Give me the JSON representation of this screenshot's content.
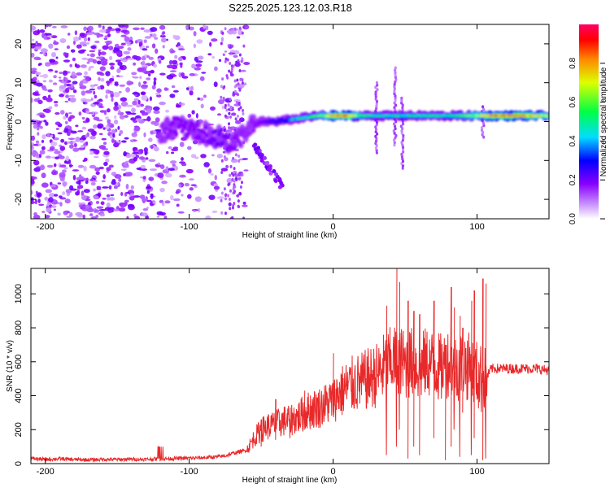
{
  "title": "S225.2025.123.12.03.R18",
  "chart_data": [
    {
      "type": "heatmap",
      "xlabel": "Height of straight line (km)",
      "ylabel": "Frequency (Hz)",
      "xlim": [
        -210,
        150
      ],
      "ylim": [
        -25,
        25
      ],
      "xticks": [
        -200,
        -100,
        0,
        100
      ],
      "yticks": [
        20,
        10,
        0,
        -10,
        -20
      ],
      "colorbar": {
        "label": "Normalized spectral amplitude",
        "range": [
          0,
          1
        ],
        "ticks": [
          0.0,
          0.2,
          0.4,
          0.6,
          0.8
        ],
        "colors": [
          "#ffffff",
          "#cc99ff",
          "#8800ff",
          "#0000ff",
          "#00ddff",
          "#00ff44",
          "#ddff00",
          "#ff8800",
          "#ff0000",
          "#ff0066"
        ]
      },
      "ridge": {
        "x": [
          -120,
          -110,
          -100,
          -90,
          -80,
          -70,
          -60,
          -50,
          -40,
          -30,
          -20,
          -10,
          0,
          10,
          20,
          30,
          40,
          50,
          60,
          70,
          80,
          90,
          100,
          110,
          120,
          130,
          140,
          150
        ],
        "y": [
          -3,
          -1,
          -2,
          -3,
          -4,
          -6,
          -2,
          0,
          0,
          0.5,
          1,
          1.5,
          1.5,
          1.5,
          1.5,
          1.5,
          1.5,
          1.5,
          1.5,
          1.5,
          1.5,
          1.5,
          1.5,
          1.5,
          1.5,
          1.5,
          1.5,
          1.5
        ],
        "amplitude": [
          0.25,
          0.3,
          0.3,
          0.3,
          0.35,
          0.3,
          0.25,
          0.3,
          0.4,
          0.45,
          0.5,
          0.6,
          0.85,
          0.9,
          0.6,
          0.5,
          0.5,
          0.5,
          0.55,
          0.55,
          0.5,
          0.6,
          0.7,
          0.85,
          0.9,
          0.9,
          0.8,
          0.7
        ]
      }
    },
    {
      "type": "line",
      "xlabel": "Height of straight line (km)",
      "ylabel": "SNR (10 * v/v)",
      "xlim": [
        -210,
        150
      ],
      "ylim": [
        0,
        1150
      ],
      "xticks": [
        -200,
        -100,
        0,
        100
      ],
      "yticks": [
        0,
        200,
        400,
        600,
        800,
        1000
      ],
      "color": "#e8292a",
      "series": [
        {
          "x": [
            -210,
            -200,
            -190,
            -180,
            -170,
            -160,
            -150,
            -140,
            -130,
            -120,
            -110,
            -100,
            -90,
            -80,
            -75,
            -70,
            -65,
            -60,
            -55,
            -50,
            -45,
            -40,
            -35,
            -30,
            -25,
            -20,
            -15,
            -10,
            -5,
            0,
            5,
            10,
            15,
            20,
            25,
            30,
            35,
            40,
            45,
            50,
            55,
            60,
            65,
            70,
            75,
            80,
            85,
            90,
            95,
            100,
            105,
            110,
            120,
            130,
            140,
            150
          ],
          "y": [
            30,
            25,
            28,
            24,
            22,
            25,
            24,
            26,
            25,
            28,
            30,
            32,
            35,
            40,
            45,
            60,
            70,
            80,
            150,
            200,
            220,
            230,
            250,
            260,
            270,
            300,
            320,
            330,
            350,
            380,
            420,
            450,
            470,
            480,
            500,
            520,
            560,
            600,
            620,
            580,
            600,
            560,
            600,
            580,
            560,
            600,
            560,
            600,
            560,
            520,
            480,
            560,
            560,
            560,
            560,
            550
          ],
          "spikes": {
            "x": [
              -50,
              -40,
              -30,
              -20,
              0,
              37,
              44,
              46,
              52,
              56,
              60,
              70,
              78,
              82,
              84,
              88,
              90,
              96,
              98,
              104,
              106
            ],
            "hi": [
              260,
              380,
              330,
              430,
              650,
              930,
              1150,
              1070,
              960,
              900,
              880,
              960,
              700,
              1040,
              920,
              870,
              800,
              960,
              1020,
              1090,
              1060
            ],
            "lo": [
              100,
              140,
              150,
              200,
              320,
              50,
              100,
              200,
              30,
              100,
              50,
              150,
              20,
              100,
              200,
              40,
              300,
              50,
              150,
              20,
              30
            ]
          }
        }
      ]
    }
  ]
}
